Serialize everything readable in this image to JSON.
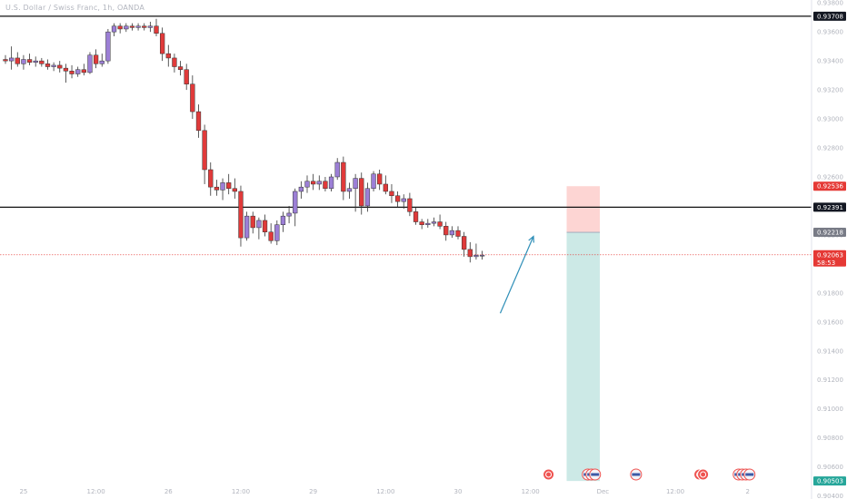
{
  "header": {
    "title": "U.S. Dollar / Swiss Franc, 1h, OANDA"
  },
  "colors": {
    "up": "#9c7fd6",
    "down": "#e03a3a",
    "wick": "#333333",
    "price": "#e53935",
    "stop_zone": "#fdd5d3",
    "target_zone": "#cce9e6",
    "target_tag": "#26a69a",
    "grey_tag": "#787b86",
    "arrow": "#2f8fb8",
    "event_red": "#ef5350"
  },
  "chart_data": {
    "type": "candlestick",
    "y_range": [
      0.9041,
      0.9382
    ],
    "y_ticks": [
      "0.93800",
      "0.93600",
      "0.93400",
      "0.93200",
      "0.93000",
      "0.92800",
      "0.92600",
      "0.92400",
      "0.92200",
      "0.92000",
      "0.91800",
      "0.91600",
      "0.91400",
      "0.91200",
      "0.91000",
      "0.90800",
      "0.90600",
      "0.90400"
    ],
    "x_range": [
      0,
      118
    ],
    "x_ticks": [
      {
        "label": "25",
        "i": 3
      },
      {
        "label": "12:00",
        "i": 15
      },
      {
        "label": "26",
        "i": 27
      },
      {
        "label": "12:00",
        "i": 39
      },
      {
        "label": "29",
        "i": 51
      },
      {
        "label": "12:00",
        "i": 63
      },
      {
        "label": "30",
        "i": 75
      },
      {
        "label": "12:00",
        "i": 87
      },
      {
        "label": "Dec",
        "i": 99
      },
      {
        "label": "12:00",
        "i": 111
      },
      {
        "label": "2",
        "i": 123
      }
    ],
    "candles": [
      [
        0.9341,
        0.9344,
        0.9338,
        0.934
      ],
      [
        0.934,
        0.935,
        0.9334,
        0.9342
      ],
      [
        0.9342,
        0.9346,
        0.9336,
        0.9338
      ],
      [
        0.9338,
        0.9344,
        0.9334,
        0.9341
      ],
      [
        0.9341,
        0.9345,
        0.9337,
        0.9339
      ],
      [
        0.9339,
        0.9343,
        0.9336,
        0.934
      ],
      [
        0.934,
        0.9342,
        0.9336,
        0.9338
      ],
      [
        0.9338,
        0.9341,
        0.9334,
        0.9336
      ],
      [
        0.9336,
        0.9339,
        0.9333,
        0.9337
      ],
      [
        0.9337,
        0.934,
        0.9332,
        0.9335
      ],
      [
        0.9335,
        0.9338,
        0.9325,
        0.9333
      ],
      [
        0.9333,
        0.9337,
        0.9328,
        0.9331
      ],
      [
        0.9331,
        0.9336,
        0.9329,
        0.9334
      ],
      [
        0.9334,
        0.9338,
        0.933,
        0.9332
      ],
      [
        0.9332,
        0.9346,
        0.9331,
        0.9344
      ],
      [
        0.9344,
        0.9348,
        0.9335,
        0.9338
      ],
      [
        0.9338,
        0.9345,
        0.9336,
        0.934
      ],
      [
        0.934,
        0.9362,
        0.9338,
        0.936
      ],
      [
        0.936,
        0.9366,
        0.9357,
        0.9364
      ],
      [
        0.9364,
        0.9366,
        0.9359,
        0.9362
      ],
      [
        0.9362,
        0.9366,
        0.936,
        0.9364
      ],
      [
        0.9364,
        0.9366,
        0.9361,
        0.9363
      ],
      [
        0.9363,
        0.9366,
        0.9361,
        0.9364
      ],
      [
        0.9364,
        0.9366,
        0.9361,
        0.9363
      ],
      [
        0.9363,
        0.9367,
        0.936,
        0.9364
      ],
      [
        0.9364,
        0.9369,
        0.9357,
        0.9359
      ],
      [
        0.9359,
        0.9363,
        0.934,
        0.9345
      ],
      [
        0.9345,
        0.9351,
        0.9336,
        0.9342
      ],
      [
        0.9342,
        0.9345,
        0.9332,
        0.9336
      ],
      [
        0.9336,
        0.934,
        0.933,
        0.9334
      ],
      [
        0.9334,
        0.9338,
        0.932,
        0.9324
      ],
      [
        0.9324,
        0.933,
        0.93,
        0.9305
      ],
      [
        0.9305,
        0.931,
        0.9287,
        0.9292
      ],
      [
        0.9292,
        0.9296,
        0.9255,
        0.9265
      ],
      [
        0.9265,
        0.927,
        0.9247,
        0.9253
      ],
      [
        0.9253,
        0.9258,
        0.9247,
        0.9251
      ],
      [
        0.9251,
        0.9259,
        0.9244,
        0.9256
      ],
      [
        0.9256,
        0.9262,
        0.9248,
        0.9252
      ],
      [
        0.9252,
        0.9259,
        0.9245,
        0.925
      ],
      [
        0.925,
        0.9254,
        0.9212,
        0.9218
      ],
      [
        0.9218,
        0.9236,
        0.9216,
        0.9233
      ],
      [
        0.9233,
        0.9236,
        0.9221,
        0.9225
      ],
      [
        0.9225,
        0.9232,
        0.9217,
        0.923
      ],
      [
        0.923,
        0.9234,
        0.9219,
        0.9222
      ],
      [
        0.9222,
        0.9228,
        0.9214,
        0.9216
      ],
      [
        0.9216,
        0.923,
        0.9213,
        0.9227
      ],
      [
        0.9227,
        0.9236,
        0.9222,
        0.9233
      ],
      [
        0.9233,
        0.924,
        0.9228,
        0.9235
      ],
      [
        0.9235,
        0.9252,
        0.9226,
        0.925
      ],
      [
        0.925,
        0.9257,
        0.9245,
        0.9253
      ],
      [
        0.9253,
        0.9261,
        0.9249,
        0.9257
      ],
      [
        0.9257,
        0.9262,
        0.9251,
        0.9255
      ],
      [
        0.9255,
        0.9261,
        0.9251,
        0.9257
      ],
      [
        0.9257,
        0.926,
        0.925,
        0.9252
      ],
      [
        0.9252,
        0.9262,
        0.925,
        0.926
      ],
      [
        0.926,
        0.9273,
        0.9258,
        0.927
      ],
      [
        0.927,
        0.9274,
        0.9244,
        0.925
      ],
      [
        0.925,
        0.9256,
        0.9245,
        0.9252
      ],
      [
        0.9252,
        0.9262,
        0.9236,
        0.9259
      ],
      [
        0.9259,
        0.9263,
        0.9234,
        0.924
      ],
      [
        0.924,
        0.9256,
        0.9236,
        0.9252
      ],
      [
        0.9252,
        0.9264,
        0.925,
        0.9262
      ],
      [
        0.9262,
        0.9265,
        0.9251,
        0.9255
      ],
      [
        0.9255,
        0.9261,
        0.9248,
        0.925
      ],
      [
        0.925,
        0.9255,
        0.9242,
        0.9247
      ],
      [
        0.9247,
        0.925,
        0.9239,
        0.9243
      ],
      [
        0.9243,
        0.9248,
        0.9238,
        0.9245
      ],
      [
        0.9245,
        0.9249,
        0.9233,
        0.9236
      ],
      [
        0.9236,
        0.9239,
        0.9227,
        0.9229
      ],
      [
        0.9229,
        0.9231,
        0.9224,
        0.9227
      ],
      [
        0.9227,
        0.9231,
        0.9225,
        0.9228
      ],
      [
        0.9228,
        0.9232,
        0.9226,
        0.9229
      ],
      [
        0.9229,
        0.9234,
        0.9224,
        0.9226
      ],
      [
        0.9226,
        0.9229,
        0.9216,
        0.922
      ],
      [
        0.922,
        0.9226,
        0.9218,
        0.9223
      ],
      [
        0.9223,
        0.9226,
        0.9217,
        0.9219
      ],
      [
        0.9219,
        0.9222,
        0.9205,
        0.921
      ],
      [
        0.921,
        0.9215,
        0.9201,
        0.9205
      ],
      [
        0.9205,
        0.9214,
        0.9203,
        0.9206
      ],
      [
        0.9206,
        0.9209,
        0.9203,
        0.9206
      ]
    ],
    "levels": [
      {
        "value": 0.93708,
        "label": "0.93708",
        "style": "black-line"
      },
      {
        "value": 0.92391,
        "label": "0.92391",
        "style": "black-line"
      }
    ],
    "position": {
      "type": "short",
      "entry": 0.92218,
      "entry_label": "0.92218",
      "stop": 0.92536,
      "stop_label": "0.92536",
      "target": 0.90503,
      "target_label": "0.90503",
      "start_i": 93,
      "end_i": 98.5
    },
    "current_price": {
      "value": 0.92063,
      "label": "0.92063",
      "countdown": "58:53"
    },
    "annotations": [
      {
        "type": "arrow",
        "from": [
          82,
          0.9166
        ],
        "to": [
          87.5,
          0.9219
        ]
      }
    ],
    "events": [
      {
        "i": 90,
        "kind": "red",
        "count": 1
      },
      {
        "i": 96.5,
        "kind": "flag",
        "count": 3
      },
      {
        "i": 104.5,
        "kind": "flag",
        "count": 1
      },
      {
        "i": 115,
        "kind": "red",
        "count": 2
      },
      {
        "i": 121.5,
        "kind": "flag",
        "count": 4
      },
      {
        "i": 141,
        "kind": "red",
        "count": 1
      }
    ]
  }
}
